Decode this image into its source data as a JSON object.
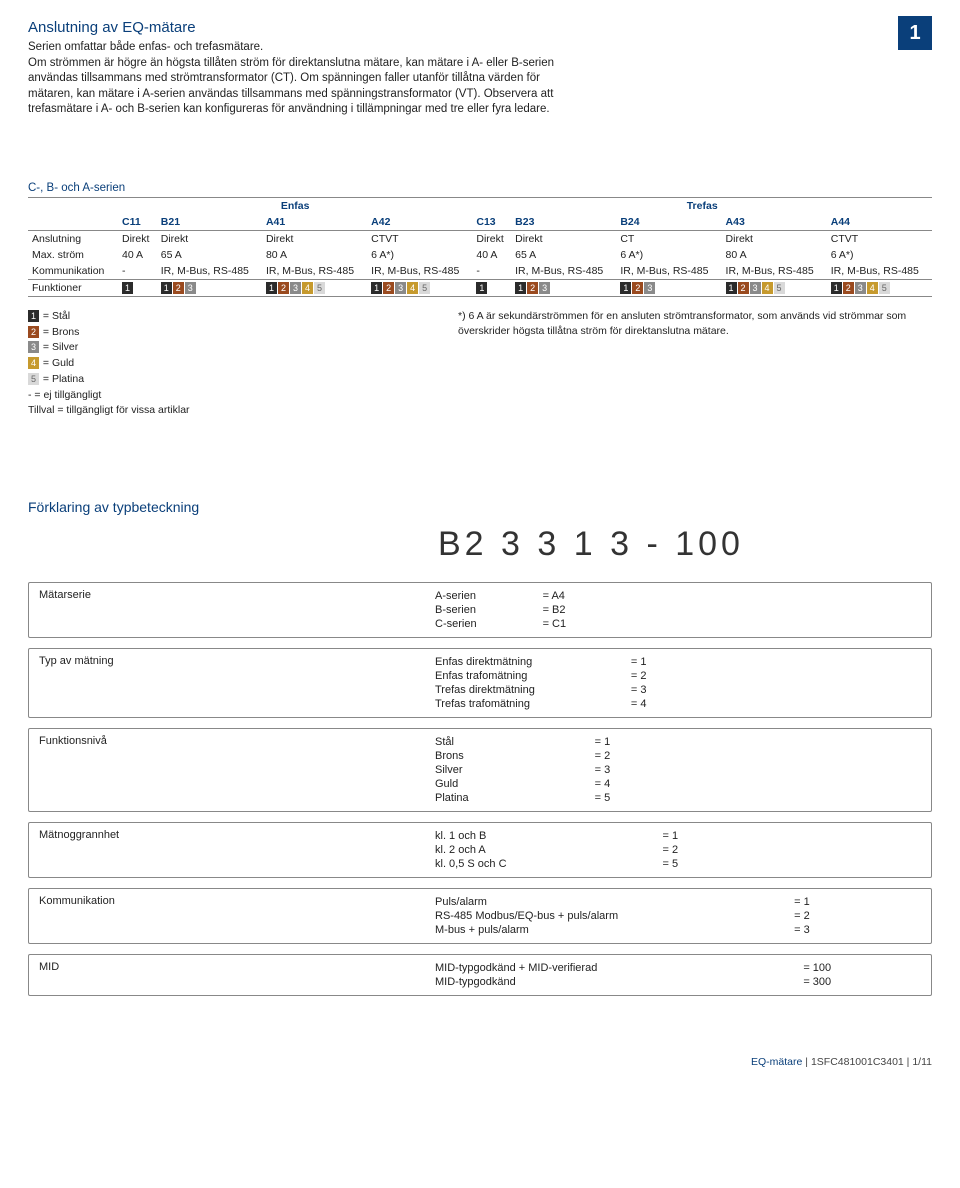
{
  "corner_number": "1",
  "title": "Anslutning av EQ-mätare",
  "intro": [
    "Serien omfattar både enfas- och trefasmätare.",
    "Om strömmen är högre än högsta tillåten ström för direktanslutna mätare, kan mätare i A- eller B-serien användas tillsammans med strömtransformator (CT). Om spänningen faller utanför tillåtna värden för mätaren, kan mätare i A-serien användas tillsammans med spänningstransformator (VT). Observera att trefasmätare i A- och B-serien kan konfigureras för användning i tillämpningar med tre eller fyra ledare."
  ],
  "series_heading": "C-, B- och A-serien",
  "group_labels": [
    "Enfas",
    "Trefas"
  ],
  "columns": [
    "C11",
    "B21",
    "A41",
    "A42",
    "C13",
    "B23",
    "B24",
    "A43",
    "A44"
  ],
  "row_labels": {
    "anslutning": "Anslutning",
    "maxstrom": "Max. ström",
    "kommunikation": "Kommunikation",
    "funktioner": "Funktioner"
  },
  "rows": {
    "anslutning": [
      "Direkt",
      "Direkt",
      "Direkt",
      "CTVT",
      "Direkt",
      "Direkt",
      "CT",
      "Direkt",
      "CTVT"
    ],
    "maxstrom": [
      "40 A",
      "65 A",
      "80 A",
      "6 A*)",
      "40 A",
      "65 A",
      "6 A*)",
      "80 A",
      "6 A*)"
    ],
    "kommunikation": [
      "-",
      "IR, M-Bus, RS-485",
      "IR, M-Bus, RS-485",
      "IR, M-Bus, RS-485",
      "-",
      "IR, M-Bus, RS-485",
      "IR, M-Bus, RS-485",
      "IR, M-Bus, RS-485",
      "IR, M-Bus, RS-485"
    ]
  },
  "funktioner_badges": [
    [
      1
    ],
    [
      1,
      2,
      3
    ],
    [
      1,
      2,
      3,
      4,
      5
    ],
    [
      1,
      2,
      3,
      4,
      5
    ],
    [
      1
    ],
    [
      1,
      2,
      3
    ],
    [
      1,
      2,
      3
    ],
    [
      1,
      2,
      3,
      4,
      5
    ],
    [
      1,
      2,
      3,
      4,
      5
    ]
  ],
  "legend_left": [
    {
      "badge": 1,
      "text": " = Stål"
    },
    {
      "badge": 2,
      "text": " = Brons"
    },
    {
      "badge": 3,
      "text": " = Silver"
    },
    {
      "badge": 4,
      "text": " = Guld"
    },
    {
      "badge": 5,
      "text": " = Platina"
    },
    {
      "badge": null,
      "text": "- = ej tillgängligt"
    },
    {
      "badge": null,
      "text": "Tillval = tillgängligt för vissa artiklar"
    }
  ],
  "legend_right": "*) 6 A är sekundärströmmen för en ansluten strömtransformator, som används vid strömmar som överskrider högsta tillåtna ström för direktanslutna mätare.",
  "type_heading": "Förklaring av typbeteckning",
  "type_example": "B2 3  3 1 3  - 100",
  "type_blocks": [
    {
      "label": "Mätarserie",
      "maps": [
        [
          "A-serien",
          "= A4"
        ],
        [
          "B-serien",
          "= B2"
        ],
        [
          "C-serien",
          "= C1"
        ]
      ]
    },
    {
      "label": "Typ av mätning",
      "maps": [
        [
          "Enfas direktmätning",
          "= 1"
        ],
        [
          "Enfas trafomätning",
          "= 2"
        ],
        [
          "Trefas direktmätning",
          "= 3"
        ],
        [
          "Trefas trafomätning",
          "= 4"
        ]
      ]
    },
    {
      "label": "Funktionsnivå",
      "maps": [
        [
          "Stål",
          "= 1"
        ],
        [
          "Brons",
          "= 2"
        ],
        [
          "Silver",
          "= 3"
        ],
        [
          "Guld",
          "= 4"
        ],
        [
          "Platina",
          "= 5"
        ]
      ]
    },
    {
      "label": "Mätnoggrannhet",
      "maps": [
        [
          "kl. 1 och B",
          "= 1"
        ],
        [
          "kl. 2 och A",
          "= 2"
        ],
        [
          "kl. 0,5 S och C",
          "= 5"
        ]
      ]
    },
    {
      "label": "Kommunikation",
      "maps": [
        [
          "Puls/alarm",
          "= 1"
        ],
        [
          "RS-485 Modbus/EQ-bus + puls/alarm",
          "= 2"
        ],
        [
          "M-bus + puls/alarm",
          "= 3"
        ]
      ]
    },
    {
      "label": "MID",
      "maps": [
        [
          "MID-typgodkänd + MID-verifierad",
          "= 100"
        ],
        [
          "MID-typgodkänd",
          "= 300"
        ]
      ]
    }
  ],
  "type_eq_offsets": [
    60,
    90,
    120,
    150,
    170,
    200
  ],
  "footer": {
    "brand": "EQ-mätare",
    "sep": " | ",
    "code": "1SFC481001C3401",
    "page": "1/11"
  },
  "colors": {
    "blue": "#0a3f7a",
    "badge": [
      "#2b2b2b",
      "#9a4a1f",
      "#8a8a8a",
      "#c69a2e",
      "#d9d9d9"
    ]
  }
}
